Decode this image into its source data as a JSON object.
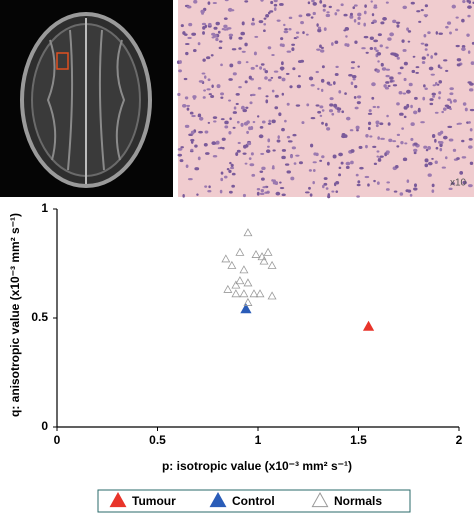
{
  "figure": {
    "magnification": "x10"
  },
  "chart_data": {
    "type": "scatter",
    "x_label": "p: isotropic value (x10⁻³ mm² s⁻¹)",
    "y_label": "q: anisotropic value (x10⁻³ mm² s⁻¹)",
    "xlim": [
      0,
      2
    ],
    "ylim": [
      0,
      1
    ],
    "xticks": [
      0,
      0.5,
      1,
      1.5,
      2
    ],
    "yticks": [
      0,
      0.5,
      1
    ],
    "legend": "bottom",
    "series": [
      {
        "name": "Tumour",
        "color": "#e8342a",
        "marker": "filled",
        "x": [
          1.55
        ],
        "values": [
          0.46
        ]
      },
      {
        "name": "Control",
        "color": "#2a5cb8",
        "marker": "filled",
        "x": [
          0.94
        ],
        "values": [
          0.54
        ]
      },
      {
        "name": "Normals",
        "color": "#9a9a9a",
        "marker": "open",
        "x": [
          0.95,
          0.84,
          0.91,
          0.87,
          0.93,
          0.99,
          1.02,
          1.05,
          1.03,
          1.07,
          0.91,
          0.95,
          0.85,
          0.89,
          0.93,
          0.98,
          1.01,
          1.07,
          0.95,
          0.89
        ],
        "values": [
          0.89,
          0.77,
          0.8,
          0.74,
          0.72,
          0.79,
          0.78,
          0.8,
          0.76,
          0.74,
          0.67,
          0.66,
          0.63,
          0.61,
          0.61,
          0.61,
          0.61,
          0.6,
          0.57,
          0.65
        ]
      }
    ]
  }
}
